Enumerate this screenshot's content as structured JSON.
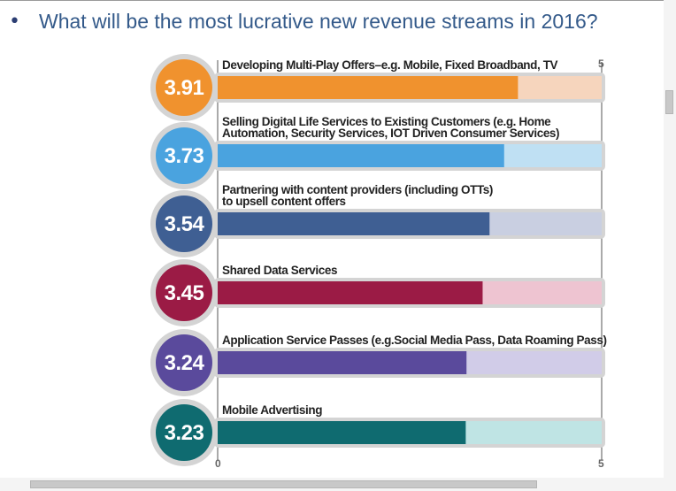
{
  "slide": {
    "bullet": "•",
    "title": "What will be the most lucrative new revenue streams in 2016?"
  },
  "chart_data": {
    "type": "bar",
    "orientation": "horizontal",
    "xlim": [
      0,
      5
    ],
    "axis_ticks": [
      "0",
      "5"
    ],
    "categories": [
      [
        "Developing Multi-Play Offers–e.g. Mobile, Fixed Broadband, TV"
      ],
      [
        "Selling Digital Life Services to Existing Customers (e.g. Home",
        "Automation, Security Services, IOT Driven Consumer Services)"
      ],
      [
        "Partnering with content providers (including OTTs)",
        "to upsell content offers"
      ],
      [
        "Shared Data Services"
      ],
      [
        "Application Service Passes (e.g.Social Media Pass, Data Roaming Pass)"
      ],
      [
        "Mobile Advertising"
      ]
    ],
    "values": [
      3.91,
      3.73,
      3.54,
      3.45,
      3.24,
      3.23
    ],
    "value_labels": [
      "3.91",
      "3.73",
      "3.54",
      "3.45",
      "3.24",
      "3.23"
    ],
    "colors": [
      "#f0922e",
      "#4aa3df",
      "#3f5f93",
      "#9b1b45",
      "#5a4a9c",
      "#0f6b70"
    ],
    "track_colors": [
      "#f6d5bd",
      "#bfe0f3",
      "#c9cfe1",
      "#eec4d1",
      "#d1cce8",
      "#bfe4e4"
    ]
  },
  "scrollbars": {
    "vertical": "vertical-scrollbar",
    "horizontal": "horizontal-scrollbar"
  }
}
